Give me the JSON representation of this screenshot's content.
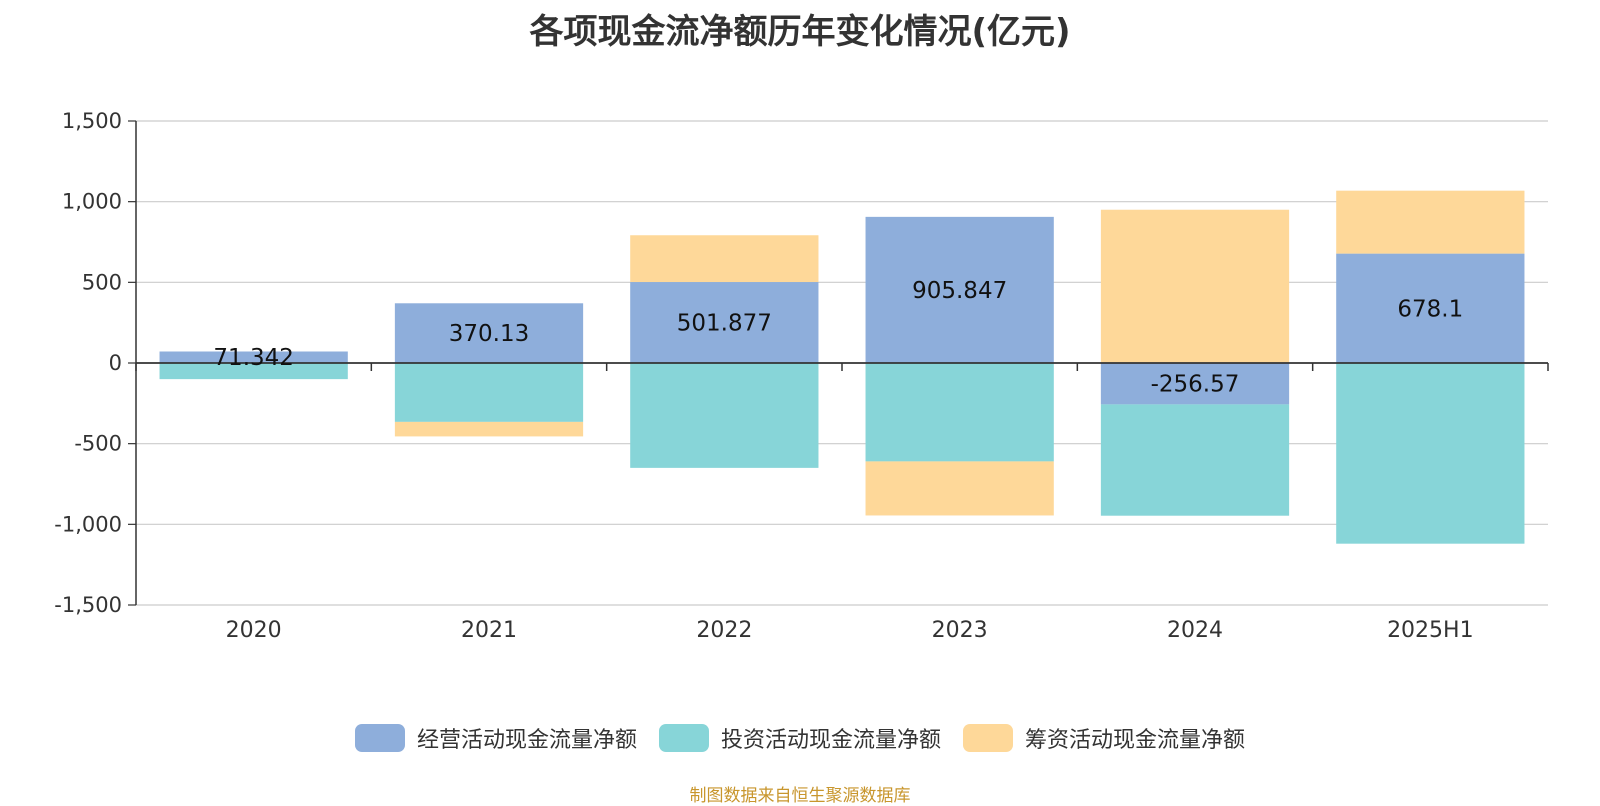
{
  "chart_data": {
    "type": "bar",
    "stacked": true,
    "title": "各项现金流净额历年变化情况(亿元)",
    "categories": [
      "2020",
      "2021",
      "2022",
      "2023",
      "2024",
      "2025H1"
    ],
    "ylim": [
      -1500,
      1500
    ],
    "yticks": [
      1500,
      1000,
      500,
      0,
      -500,
      -1000,
      -1500
    ],
    "ytick_labels": [
      "1,500",
      "1,000",
      "500",
      "0",
      "-500",
      "-1,000",
      "-1,500"
    ],
    "grid": true,
    "legend_position": "bottom",
    "series": [
      {
        "name": "经营活动现金流量净额",
        "color": "#8eaedb",
        "values": [
          71.342,
          370.13,
          501.877,
          905.847,
          -256.57,
          678.1
        ],
        "labels": [
          "71.342",
          "370.13",
          "501.877",
          "905.847",
          "-256.57",
          "678.1"
        ]
      },
      {
        "name": "投资活动现金流量净额",
        "color": "#87d5d8",
        "values": [
          -100,
          -365,
          -650,
          -610,
          -690,
          -1120
        ]
      },
      {
        "name": "筹资活动现金流量净额",
        "color": "#fed899",
        "values": [
          0,
          -90,
          290,
          -335,
          950,
          390
        ]
      }
    ]
  },
  "source_note": "制图数据来自恒生聚源数据库"
}
